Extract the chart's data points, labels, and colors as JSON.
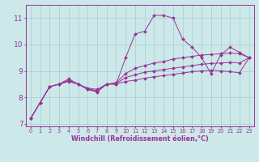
{
  "xlabel": "Windchill (Refroidissement éolien,°C)",
  "background_color": "#cce8e8",
  "grid_color": "#aacccc",
  "line_color": "#993399",
  "xlim": [
    -0.5,
    23.5
  ],
  "ylim": [
    6.9,
    11.5
  ],
  "yticks": [
    7,
    8,
    9,
    10,
    11
  ],
  "xticks": [
    0,
    1,
    2,
    3,
    4,
    5,
    6,
    7,
    8,
    9,
    10,
    11,
    12,
    13,
    14,
    15,
    16,
    17,
    18,
    19,
    20,
    21,
    22,
    23
  ],
  "series": [
    [
      7.2,
      7.8,
      8.4,
      8.5,
      8.7,
      8.5,
      8.3,
      8.2,
      8.5,
      8.5,
      9.5,
      10.4,
      10.5,
      11.1,
      11.1,
      11.0,
      10.2,
      9.9,
      9.5,
      8.9,
      9.6,
      9.9,
      9.7,
      9.5
    ],
    [
      7.2,
      7.8,
      8.4,
      8.5,
      8.65,
      8.5,
      8.35,
      8.3,
      8.5,
      8.55,
      8.9,
      9.1,
      9.2,
      9.3,
      9.35,
      9.45,
      9.5,
      9.55,
      9.6,
      9.62,
      9.65,
      9.68,
      9.65,
      9.5
    ],
    [
      7.2,
      7.8,
      8.4,
      8.5,
      8.62,
      8.5,
      8.32,
      8.25,
      8.5,
      8.52,
      8.75,
      8.85,
      8.95,
      9.0,
      9.05,
      9.1,
      9.15,
      9.2,
      9.25,
      9.28,
      9.3,
      9.32,
      9.3,
      9.5
    ],
    [
      7.2,
      7.8,
      8.4,
      8.5,
      8.6,
      8.5,
      8.3,
      8.22,
      8.5,
      8.5,
      8.6,
      8.65,
      8.72,
      8.78,
      8.82,
      8.87,
      8.92,
      8.97,
      9.0,
      9.02,
      9.0,
      8.97,
      8.93,
      9.5
    ]
  ]
}
